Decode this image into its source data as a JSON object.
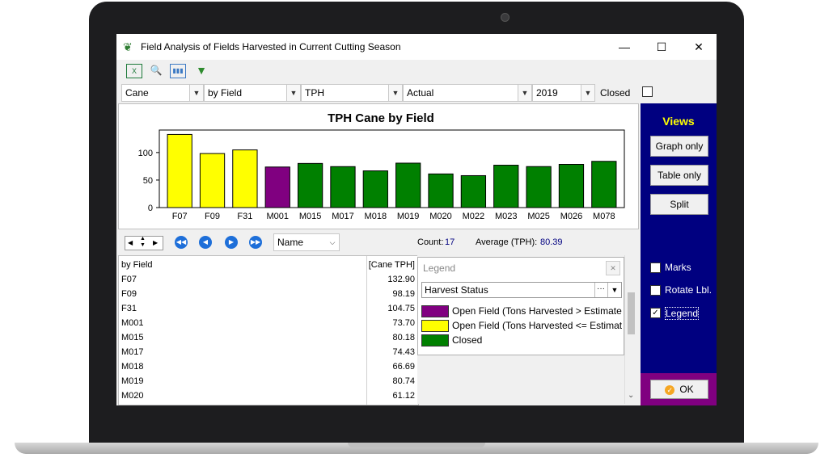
{
  "window": {
    "title": "Field Analysis of Fields Harvested in Current Cutting Season",
    "min_label": "—",
    "max_label": "☐",
    "close_label": "✕"
  },
  "filters": {
    "crop": "Cane",
    "group": "by Field",
    "measure": "TPH",
    "mode": "Actual",
    "year": "2019",
    "closed_label": "Closed",
    "closed_checked": false
  },
  "chart_data": {
    "type": "bar",
    "title": "TPH Cane by Field",
    "categories": [
      "F07",
      "F09",
      "F31",
      "M001",
      "M015",
      "M017",
      "M018",
      "M019",
      "M020",
      "M022",
      "M023",
      "M025",
      "M026",
      "M078"
    ],
    "values": [
      132.9,
      98.19,
      104.75,
      73.7,
      80.18,
      74.43,
      66.69,
      80.74,
      61.12,
      58.0,
      77.0,
      74.5,
      78.5,
      84.0
    ],
    "bar_colors": [
      "#ffff00",
      "#ffff00",
      "#ffff00",
      "#800080",
      "#008000",
      "#008000",
      "#008000",
      "#008000",
      "#008000",
      "#008000",
      "#008000",
      "#008000",
      "#008000",
      "#008000"
    ],
    "yticks": [
      "0",
      "50",
      "100"
    ],
    "ytick_values": [
      0,
      50,
      100
    ],
    "ylim": [
      0,
      135
    ],
    "grid": false
  },
  "nav": {
    "sort_value": "Name",
    "count_label": "Count:",
    "count_value": "17",
    "avg_label": "Average (TPH):",
    "avg_value": "80.39"
  },
  "table": {
    "headers": [
      "by Field",
      "[Cane TPH]"
    ],
    "rows": [
      [
        "F07",
        "132.90"
      ],
      [
        "F09",
        "98.19"
      ],
      [
        "F31",
        "104.75"
      ],
      [
        "M001",
        "73.70"
      ],
      [
        "M015",
        "80.18"
      ],
      [
        "M017",
        "74.43"
      ],
      [
        "M018",
        "66.69"
      ],
      [
        "M019",
        "80.74"
      ],
      [
        "M020",
        "61.12"
      ]
    ]
  },
  "legend": {
    "title": "Legend",
    "dropdown_value": "Harvest Status",
    "items": [
      {
        "color": "#800080",
        "label": "Open Field (Tons Harvested > Estimated Tor"
      },
      {
        "color": "#ffff00",
        "label": "Open Field (Tons Harvested <= Estimated To"
      },
      {
        "color": "#008000",
        "label": "Closed"
      }
    ]
  },
  "views": {
    "title": "Views",
    "graph_only": "Graph only",
    "table_only": "Table only",
    "split": "Split",
    "marks": "Marks",
    "rotate": "Rotate Lbl.",
    "legend": "Legend",
    "ok": "OK"
  }
}
